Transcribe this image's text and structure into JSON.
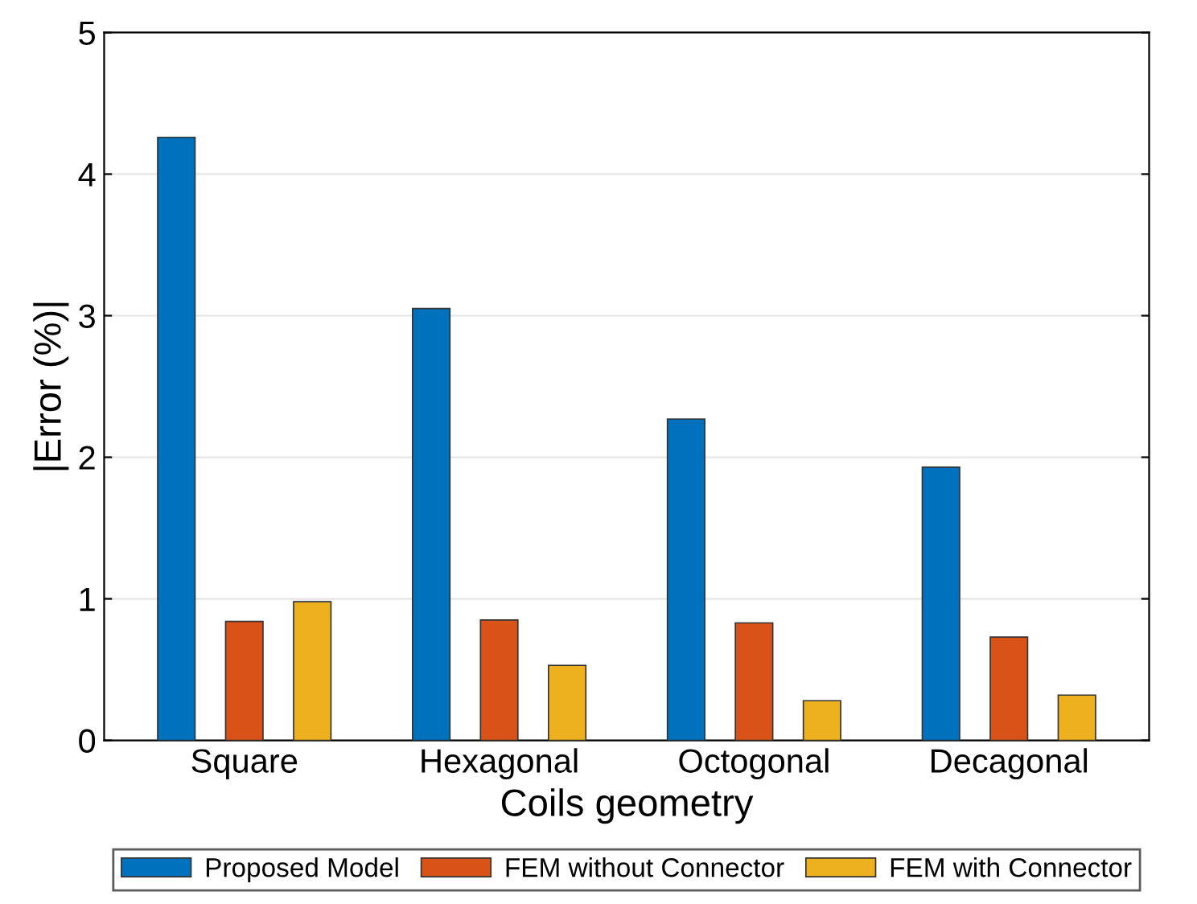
{
  "chart_data": {
    "type": "bar",
    "xlabel": "Coils geometry",
    "ylabel": "|Error (%)|",
    "categories": [
      "Square",
      "Hexagonal",
      "Octogonal",
      "Decagonal"
    ],
    "series": [
      {
        "name": "Proposed Model",
        "color": "#0072bd",
        "values": [
          4.26,
          3.05,
          2.27,
          1.93
        ]
      },
      {
        "name": "FEM without Connector",
        "color": "#d95319",
        "values": [
          0.84,
          0.85,
          0.83,
          0.73
        ]
      },
      {
        "name": "FEM with Connector",
        "color": "#edb120",
        "values": [
          0.98,
          0.53,
          0.28,
          0.32
        ]
      }
    ],
    "ylim": [
      0,
      5
    ],
    "yticks": [
      0,
      1,
      2,
      3,
      4,
      5
    ],
    "grid": "y",
    "legend": "bottom"
  }
}
